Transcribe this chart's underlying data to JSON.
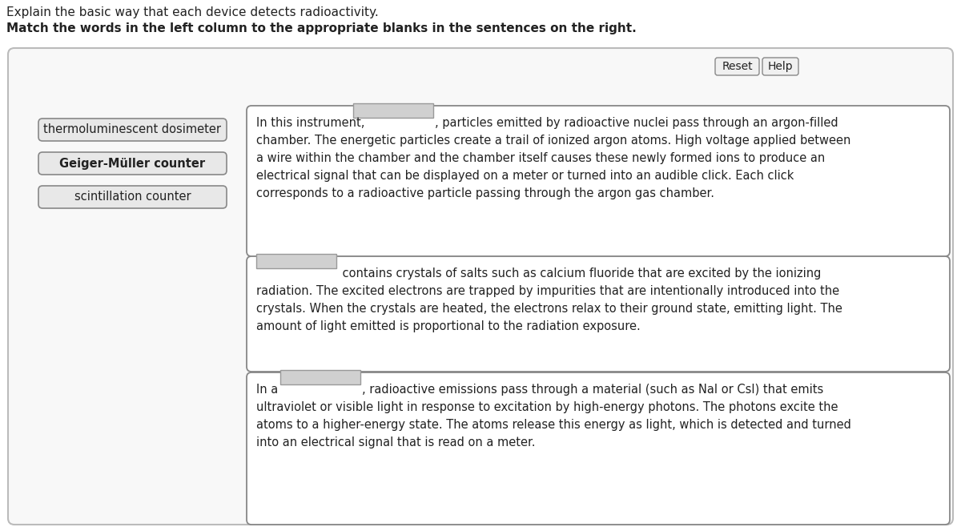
{
  "title_line1": "Explain the basic way that each device detects radioactivity.",
  "title_line2": "Match the words in the left column to the appropriate blanks in the sentences on the right.",
  "bg_color": "#ffffff",
  "left_buttons": [
    "thermoluminescent dosimeter",
    "Geiger-Müller counter",
    "scintillation counter"
  ],
  "button_fill": "#e8e8e8",
  "button_edge": "#888888",
  "blank_fill": "#d0d0d0",
  "blank_edge": "#999999",
  "outer_box_fill": "#f8f8f8",
  "outer_box_edge": "#bbbbbb",
  "panel_fill": "#ffffff",
  "panel_edge": "#888888",
  "reset_label": "Reset",
  "help_label": "Help",
  "font_size_title1": 11,
  "font_size_title2": 11,
  "font_size_body": 10.5,
  "font_size_button": 10.5,
  "font_size_btn_small": 10,
  "text_color": "#222222",
  "panel1_lines": [
    "chamber. The energetic particles create a trail of ionized argon atoms. High voltage applied between",
    "a wire within the chamber and the chamber itself causes these newly formed ions to produce an",
    "electrical signal that can be displayed on a meter or turned into an audible click. Each click",
    "corresponds to a radioactive particle passing through the argon gas chamber."
  ],
  "panel2_lines": [
    "radiation. The excited electrons are trapped by impurities that are intentionally introduced into the",
    "crystals. When the crystals are heated, the electrons relax to their ground state, emitting light. The",
    "amount of light emitted is proportional to the radiation exposure."
  ],
  "panel3_lines": [
    "ultraviolet or visible light in response to excitation by high-energy photons. The photons excite the",
    "atoms to a higher-energy state. The atoms release this energy as light, which is detected and turned",
    "into an electrical signal that is read on a meter."
  ],
  "panel1_prefix": "In this instrument,",
  "panel1_suffix": ", particles emitted by radioactive nuclei pass through an argon-filled",
  "panel2_suffix": " contains crystals of salts such as calcium fluoride that are excited by the ionizing",
  "panel3_prefix": "In a",
  "panel3_suffix": ", radioactive emissions pass through a material (such as NaI or CsI) that emits"
}
